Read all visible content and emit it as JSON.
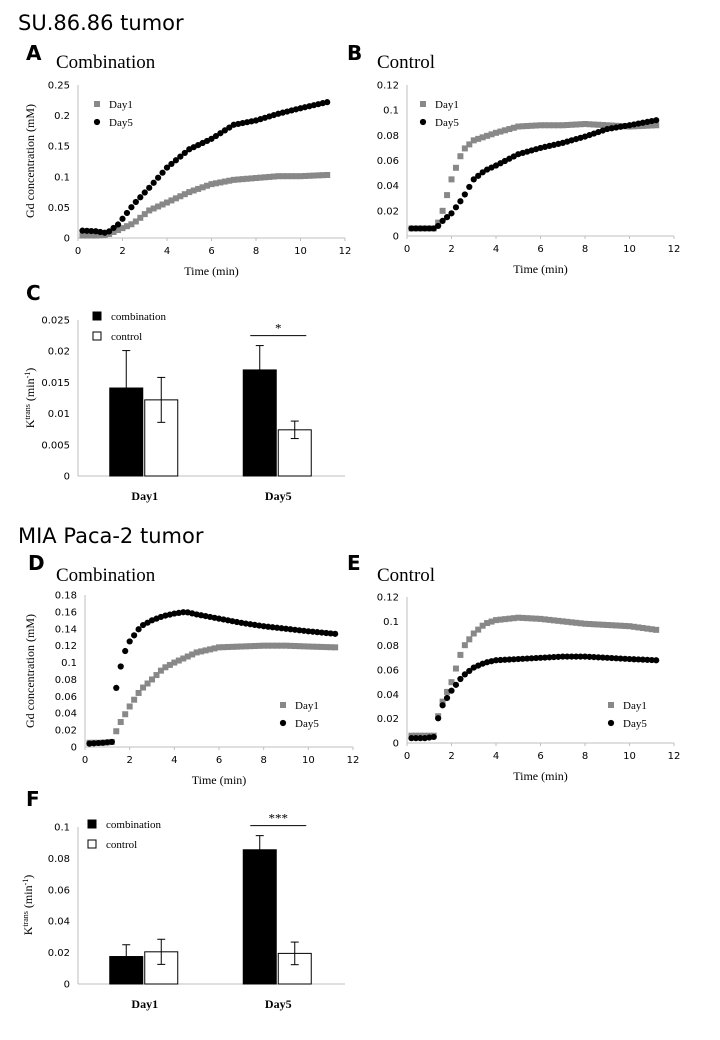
{
  "headings": {
    "top": "SU.86.86 tumor",
    "middle": "MIA Paca-2 tumor"
  },
  "colors": {
    "day1": "#888888",
    "day5": "#000000",
    "combination": "#000000",
    "control": "#ffffff"
  },
  "chart_data": [
    {
      "id": "A",
      "letter": "A",
      "type": "scatter",
      "title": "Combination",
      "xlabel": "Time (min)",
      "ylabel": "Gd concentration (mM)",
      "xlim": [
        0,
        12
      ],
      "ylim": [
        0,
        0.25
      ],
      "xticks": [
        "0",
        "2",
        "4",
        "6",
        "8",
        "10",
        "12"
      ],
      "yticks": [
        "0",
        "0.05",
        "0.1",
        "0.15",
        "0.2",
        "0.25"
      ],
      "legend": [
        "Day1",
        "Day5"
      ],
      "legend_position": "top-left",
      "series": [
        {
          "name": "Day1",
          "marker": "square",
          "anchors": [
            [
              0.2,
              0.004
            ],
            [
              0.8,
              0.004
            ],
            [
              1.3,
              0.005
            ],
            [
              1.8,
              0.013
            ],
            [
              2.5,
              0.024
            ],
            [
              3.2,
              0.045
            ],
            [
              4,
              0.058
            ],
            [
              5,
              0.075
            ],
            [
              6,
              0.088
            ],
            [
              7,
              0.095
            ],
            [
              8,
              0.098
            ],
            [
              9,
              0.101
            ],
            [
              10,
              0.101
            ],
            [
              11.2,
              0.103
            ]
          ]
        },
        {
          "name": "Day5",
          "marker": "circle",
          "anchors": [
            [
              0.2,
              0.012
            ],
            [
              0.8,
              0.011
            ],
            [
              1.3,
              0.008
            ],
            [
              1.8,
              0.022
            ],
            [
              2.5,
              0.055
            ],
            [
              3.2,
              0.082
            ],
            [
              4,
              0.115
            ],
            [
              5,
              0.145
            ],
            [
              6,
              0.162
            ],
            [
              7,
              0.185
            ],
            [
              8,
              0.192
            ],
            [
              9,
              0.203
            ],
            [
              10,
              0.212
            ],
            [
              11.2,
              0.222
            ]
          ]
        }
      ]
    },
    {
      "id": "B",
      "letter": "B",
      "type": "scatter",
      "title": "Control",
      "xlabel": "Time (min)",
      "ylabel": "",
      "xlim": [
        0,
        12
      ],
      "ylim": [
        0,
        0.12
      ],
      "xticks": [
        "0",
        "2",
        "4",
        "6",
        "8",
        "10",
        "12"
      ],
      "yticks": [
        "0",
        "0.02",
        "0.04",
        "0.06",
        "0.08",
        "0.1",
        "0.12"
      ],
      "legend": [
        "Day1",
        "Day5"
      ],
      "legend_position": "top-left",
      "series": [
        {
          "name": "Day1",
          "marker": "square",
          "anchors": [
            [
              0.2,
              0.006
            ],
            [
              0.8,
              0.006
            ],
            [
              1.3,
              0.006
            ],
            [
              1.6,
              0.02
            ],
            [
              2,
              0.045
            ],
            [
              2.5,
              0.068
            ],
            [
              3,
              0.076
            ],
            [
              3.5,
              0.079
            ],
            [
              4,
              0.082
            ],
            [
              5,
              0.087
            ],
            [
              6,
              0.088
            ],
            [
              7,
              0.088
            ],
            [
              8,
              0.089
            ],
            [
              9,
              0.088
            ],
            [
              10,
              0.087
            ],
            [
              11.2,
              0.088
            ]
          ]
        },
        {
          "name": "Day5",
          "marker": "circle",
          "anchors": [
            [
              0.2,
              0.006
            ],
            [
              0.8,
              0.006
            ],
            [
              1.3,
              0.006
            ],
            [
              1.6,
              0.012
            ],
            [
              2,
              0.018
            ],
            [
              2.5,
              0.03
            ],
            [
              3,
              0.045
            ],
            [
              3.5,
              0.052
            ],
            [
              4,
              0.056
            ],
            [
              5,
              0.065
            ],
            [
              6,
              0.07
            ],
            [
              7,
              0.074
            ],
            [
              8,
              0.079
            ],
            [
              9,
              0.085
            ],
            [
              10,
              0.088
            ],
            [
              11.2,
              0.092
            ]
          ]
        }
      ]
    },
    {
      "id": "C",
      "letter": "C",
      "type": "bar",
      "title": "",
      "ylabel": "Ktrans (min-1)",
      "ylabel_main": "K",
      "ylabel_sup": "trans",
      "ylabel_unit": " (min",
      "ylabel_unit_sup": "-1",
      "ylabel_close": ")",
      "ylim": [
        0,
        0.025
      ],
      "yticks": [
        "0",
        "0.005",
        "0.01",
        "0.015",
        "0.02",
        "0.025"
      ],
      "categories": [
        "Day1",
        "Day5"
      ],
      "series": [
        {
          "name": "combination",
          "values": [
            0.0141,
            0.017
          ],
          "errors": [
            0.006,
            0.0039
          ]
        },
        {
          "name": "control",
          "values": [
            0.0122,
            0.0074
          ],
          "errors": [
            0.0036,
            0.0014
          ]
        }
      ],
      "legend": [
        "combination",
        "control"
      ],
      "legend_position": "top-left",
      "significance": "*"
    },
    {
      "id": "D",
      "letter": "D",
      "type": "scatter",
      "title": "Combination",
      "xlabel": "Time (min)",
      "ylabel": "Gd concentration (mM)",
      "xlim": [
        0,
        12
      ],
      "ylim": [
        0,
        0.18
      ],
      "xticks": [
        "0",
        "2",
        "4",
        "6",
        "8",
        "10",
        "12"
      ],
      "yticks": [
        "0",
        "0.02",
        "0.04",
        "0.06",
        "0.08",
        "0.1",
        "0.12",
        "0.14",
        "0.16",
        "0.18"
      ],
      "legend": [
        "Day1",
        "Day5"
      ],
      "legend_position": "bottom-right",
      "series": [
        {
          "name": "Day1",
          "marker": "square",
          "anchors": [
            [
              0.2,
              0.005
            ],
            [
              0.8,
              0.005
            ],
            [
              1.2,
              0.006
            ],
            [
              1.5,
              0.025
            ],
            [
              2,
              0.048
            ],
            [
              2.5,
              0.068
            ],
            [
              3,
              0.08
            ],
            [
              3.5,
              0.093
            ],
            [
              4,
              0.1
            ],
            [
              5,
              0.112
            ],
            [
              6,
              0.118
            ],
            [
              7,
              0.119
            ],
            [
              8,
              0.12
            ],
            [
              9,
              0.12
            ],
            [
              10,
              0.119
            ],
            [
              11.2,
              0.118
            ]
          ]
        },
        {
          "name": "Day5",
          "marker": "circle",
          "anchors": [
            [
              0.2,
              0.004
            ],
            [
              0.8,
              0.005
            ],
            [
              1.2,
              0.006
            ],
            [
              1.4,
              0.07
            ],
            [
              1.7,
              0.108
            ],
            [
              2,
              0.125
            ],
            [
              2.5,
              0.143
            ],
            [
              3,
              0.15
            ],
            [
              3.5,
              0.155
            ],
            [
              4,
              0.158
            ],
            [
              4.5,
              0.16
            ],
            [
              5,
              0.157
            ],
            [
              6,
              0.152
            ],
            [
              7,
              0.147
            ],
            [
              8,
              0.143
            ],
            [
              9,
              0.14
            ],
            [
              10,
              0.137
            ],
            [
              11.2,
              0.134
            ]
          ]
        }
      ]
    },
    {
      "id": "E",
      "letter": "E",
      "type": "scatter",
      "title": "Control",
      "xlabel": "Time (min)",
      "ylabel": "",
      "xlim": [
        0,
        12
      ],
      "ylim": [
        0,
        0.12
      ],
      "xticks": [
        "0",
        "2",
        "4",
        "6",
        "8",
        "10",
        "12"
      ],
      "yticks": [
        "0",
        "0.02",
        "0.04",
        "0.06",
        "0.08",
        "0.1",
        "0.12"
      ],
      "legend": [
        "Day1",
        "Day5"
      ],
      "legend_position": "bottom-right",
      "series": [
        {
          "name": "Day1",
          "marker": "square",
          "anchors": [
            [
              0.2,
              0.006
            ],
            [
              0.8,
              0.006
            ],
            [
              1.2,
              0.006
            ],
            [
              1.5,
              0.03
            ],
            [
              2,
              0.05
            ],
            [
              2.5,
              0.078
            ],
            [
              3,
              0.09
            ],
            [
              3.5,
              0.098
            ],
            [
              4,
              0.101
            ],
            [
              5,
              0.103
            ],
            [
              6,
              0.102
            ],
            [
              7,
              0.1
            ],
            [
              8,
              0.098
            ],
            [
              9,
              0.097
            ],
            [
              10,
              0.096
            ],
            [
              11.2,
              0.093
            ]
          ]
        },
        {
          "name": "Day5",
          "marker": "circle",
          "anchors": [
            [
              0.2,
              0.004
            ],
            [
              0.8,
              0.004
            ],
            [
              1.2,
              0.005
            ],
            [
              1.5,
              0.028
            ],
            [
              2,
              0.043
            ],
            [
              2.5,
              0.055
            ],
            [
              3,
              0.062
            ],
            [
              3.5,
              0.066
            ],
            [
              4,
              0.068
            ],
            [
              5,
              0.069
            ],
            [
              6,
              0.07
            ],
            [
              7,
              0.071
            ],
            [
              8,
              0.071
            ],
            [
              9,
              0.07
            ],
            [
              10,
              0.069
            ],
            [
              11.2,
              0.068
            ]
          ]
        }
      ]
    },
    {
      "id": "F",
      "letter": "F",
      "type": "bar",
      "title": "",
      "ylabel": "Ktrans (min-1)",
      "ylabel_main": "K",
      "ylabel_sup": "trans",
      "ylabel_unit": " (min",
      "ylabel_unit_sup": "-1",
      "ylabel_close": ")",
      "ylim": [
        0,
        0.1
      ],
      "yticks": [
        "0",
        "0.02",
        "0.04",
        "0.06",
        "0.08",
        "0.1"
      ],
      "categories": [
        "Day1",
        "Day5"
      ],
      "series": [
        {
          "name": "combination",
          "values": [
            0.0175,
            0.0855
          ],
          "errors": [
            0.0075,
            0.009
          ]
        },
        {
          "name": "control",
          "values": [
            0.0205,
            0.0195
          ],
          "errors": [
            0.008,
            0.0072
          ]
        }
      ],
      "legend": [
        "combination",
        "control"
      ],
      "legend_position": "top-left",
      "significance": "***"
    }
  ]
}
